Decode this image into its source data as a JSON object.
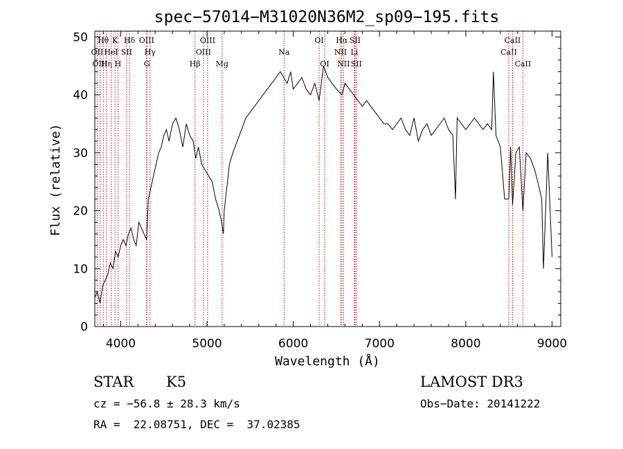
{
  "chart_data": {
    "type": "line",
    "title": "spec−57014−M31020N36M2_sp09−195.fits",
    "xlabel": "Wavelength (Å)",
    "ylabel": "Flux (relative)",
    "xlim": [
      3700,
      9100
    ],
    "ylim": [
      0,
      51
    ],
    "xticks": [
      4000,
      5000,
      6000,
      7000,
      8000,
      9000
    ],
    "yticks": [
      0,
      10,
      20,
      30,
      40,
      50
    ],
    "grid": false,
    "series": [
      {
        "line_color": "#000000",
        "x": [
          3700,
          3730,
          3760,
          3790,
          3820,
          3850,
          3880,
          3910,
          3940,
          3970,
          4000,
          4030,
          4060,
          4090,
          4120,
          4150,
          4180,
          4210,
          4240,
          4270,
          4300,
          4320,
          4350,
          4380,
          4410,
          4440,
          4470,
          4500,
          4530,
          4560,
          4600,
          4640,
          4680,
          4720,
          4760,
          4800,
          4840,
          4870,
          4900,
          4940,
          4980,
          5020,
          5060,
          5100,
          5140,
          5170,
          5190,
          5200,
          5230,
          5260,
          5300,
          5350,
          5400,
          5450,
          5500,
          5550,
          5600,
          5650,
          5700,
          5750,
          5800,
          5850,
          5890,
          5930,
          5970,
          6000,
          6050,
          6100,
          6150,
          6200,
          6250,
          6300,
          6350,
          6400,
          6450,
          6500,
          6563,
          6600,
          6650,
          6700,
          6750,
          6800,
          6850,
          6900,
          6950,
          7000,
          7050,
          7100,
          7150,
          7200,
          7250,
          7300,
          7350,
          7400,
          7450,
          7500,
          7550,
          7600,
          7650,
          7700,
          7750,
          7800,
          7850,
          7880,
          7900,
          7950,
          8000,
          8050,
          8100,
          8150,
          8200,
          8250,
          8300,
          8320,
          8350,
          8400,
          8450,
          8498,
          8520,
          8542,
          8580,
          8620,
          8662,
          8700,
          8750,
          8800,
          8850,
          8880,
          8900,
          8950,
          9000
        ],
        "y": [
          5,
          6,
          4,
          7,
          8,
          9,
          11,
          10,
          13,
          12,
          14,
          15,
          14,
          16,
          17,
          15,
          14,
          18,
          17,
          16,
          15,
          22,
          24,
          26,
          28,
          30,
          31,
          33,
          34,
          32,
          35,
          36,
          34,
          31,
          35,
          33,
          32,
          29,
          31,
          28,
          27,
          26,
          25,
          22,
          20,
          18,
          16,
          20,
          24,
          28,
          30,
          32,
          34,
          36,
          37,
          38,
          39,
          40,
          41,
          42,
          43,
          44,
          43,
          42,
          44,
          41,
          42,
          43,
          41,
          40,
          42,
          39,
          45,
          43,
          42,
          41,
          40,
          42,
          41,
          40,
          39,
          38,
          39,
          38,
          37,
          36,
          35,
          35,
          34,
          35,
          36,
          34,
          33,
          36,
          32,
          34,
          35,
          33,
          34,
          35,
          36,
          34,
          33,
          22,
          36,
          35,
          34,
          35,
          36,
          35,
          34,
          35,
          34,
          44,
          33,
          31,
          22,
          22,
          31,
          21,
          30,
          31,
          20,
          30,
          29,
          27,
          24,
          22,
          10,
          30,
          12
        ]
      }
    ],
    "lines": [
      {
        "label": "Hθ",
        "x": 3798,
        "row": 0
      },
      {
        "label": "OII",
        "x": 3727,
        "row": 1
      },
      {
        "label": "OIII",
        "x": 3760,
        "row": 2
      },
      {
        "label": "Hη",
        "x": 3835,
        "row": 2
      },
      {
        "label": "HeI",
        "x": 3889,
        "row": 1
      },
      {
        "label": "K",
        "x": 3934,
        "row": 0
      },
      {
        "label": "H",
        "x": 3968,
        "row": 2
      },
      {
        "label": "SII",
        "x": 4068,
        "row": 1
      },
      {
        "label": "Hδ",
        "x": 4102,
        "row": 0
      },
      {
        "label": "OIII",
        "x": 4300,
        "row": 0
      },
      {
        "label": "Hγ",
        "x": 4340,
        "row": 1
      },
      {
        "label": "G",
        "x": 4304,
        "row": 2
      },
      {
        "label": "Hβ",
        "x": 4861,
        "row": 2
      },
      {
        "label": "OIII",
        "x": 4959,
        "row": 1
      },
      {
        "label": "OIII",
        "x": 5007,
        "row": 0
      },
      {
        "label": "Mg",
        "x": 5175,
        "row": 2
      },
      {
        "label": "Na",
        "x": 5893,
        "row": 1
      },
      {
        "label": "OI",
        "x": 6300,
        "row": 0
      },
      {
        "label": "OI",
        "x": 6364,
        "row": 2
      },
      {
        "label": "NII",
        "x": 6548,
        "row": 1
      },
      {
        "label": "Hα",
        "x": 6563,
        "row": 0
      },
      {
        "label": "NII",
        "x": 6583,
        "row": 2
      },
      {
        "label": "Li",
        "x": 6708,
        "row": 1
      },
      {
        "label": "SII",
        "x": 6716,
        "row": 0
      },
      {
        "label": "SII",
        "x": 6731,
        "row": 2
      },
      {
        "label": "CaII",
        "x": 8498,
        "row": 1
      },
      {
        "label": "CaII",
        "x": 8542,
        "row": 0
      },
      {
        "label": "CaII",
        "x": 8662,
        "row": 2
      }
    ]
  },
  "info": {
    "object_class": "STAR",
    "subclass": "K5",
    "survey": "LAMOST DR3",
    "redshift": "cz = −56.8 ± 28.3 km/s",
    "obs_date": "Obs−Date: 20141222",
    "coords": "RA =  22.08751, DEC =  37.02385"
  }
}
